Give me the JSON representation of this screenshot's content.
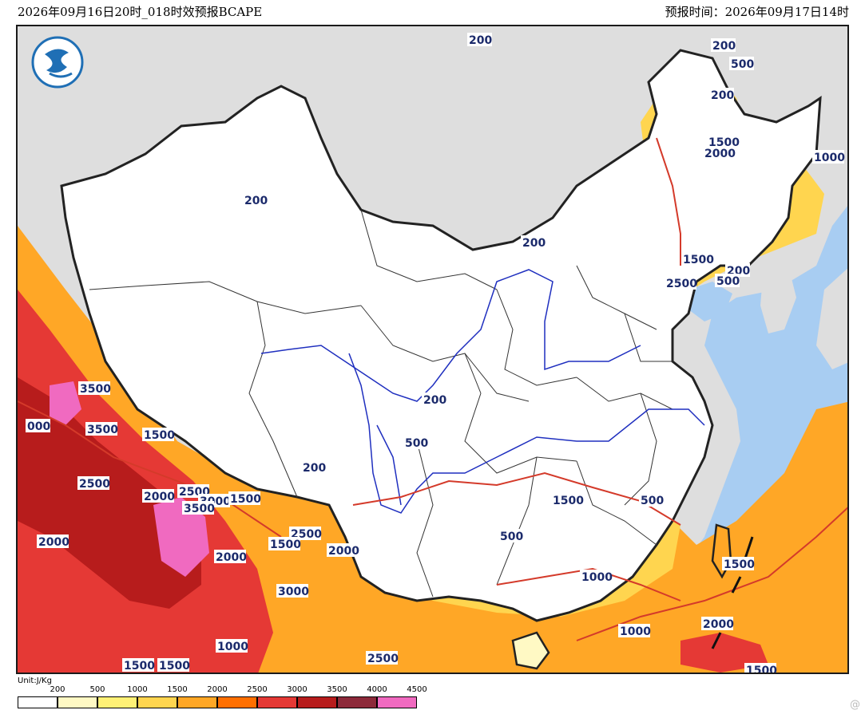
{
  "header": {
    "left": "2026年09月16日20时_018时效预报BCAPE",
    "right": "预报时间：2026年09月17日14时"
  },
  "legend": {
    "unit": "Unit:J/Kg",
    "ticks": [
      "200",
      "500",
      "1000",
      "1500",
      "2000",
      "2500",
      "3000",
      "3500",
      "4000",
      "4500"
    ],
    "colors": [
      "#ffffff",
      "#fff9c4",
      "#fff176",
      "#ffd54f",
      "#ffa726",
      "#ff6f00",
      "#e53935",
      "#b71c1c",
      "#8d2a3a",
      "#f06ac0"
    ]
  },
  "contour_labels": [
    {
      "id": "l01",
      "text": "200"
    },
    {
      "id": "l02",
      "text": "200"
    },
    {
      "id": "l03",
      "text": "500"
    },
    {
      "id": "l04",
      "text": "200"
    },
    {
      "id": "l05",
      "text": "1500"
    },
    {
      "id": "l06",
      "text": "2000"
    },
    {
      "id": "l07",
      "text": "1000"
    },
    {
      "id": "l08",
      "text": "200"
    },
    {
      "id": "l09",
      "text": "200"
    },
    {
      "id": "l10",
      "text": "1500"
    },
    {
      "id": "l11",
      "text": "200"
    },
    {
      "id": "l12",
      "text": "2500"
    },
    {
      "id": "l13",
      "text": "500"
    },
    {
      "id": "l14",
      "text": "200"
    },
    {
      "id": "l15",
      "text": "500"
    },
    {
      "id": "l16",
      "text": "200"
    },
    {
      "id": "l17",
      "text": "3500"
    },
    {
      "id": "l18",
      "text": "3500"
    },
    {
      "id": "l19",
      "text": "1500"
    },
    {
      "id": "l20",
      "text": "000"
    },
    {
      "id": "l21",
      "text": "2500"
    },
    {
      "id": "l22",
      "text": "2000"
    },
    {
      "id": "l23",
      "text": "2500"
    },
    {
      "id": "l24",
      "text": "3000"
    },
    {
      "id": "l25",
      "text": "1500"
    },
    {
      "id": "l26",
      "text": "3500"
    },
    {
      "id": "l27",
      "text": "2000"
    },
    {
      "id": "l28",
      "text": "2500"
    },
    {
      "id": "l29",
      "text": "1500"
    },
    {
      "id": "l30",
      "text": "2000"
    },
    {
      "id": "l31",
      "text": "2000"
    },
    {
      "id": "l32",
      "text": "3000"
    },
    {
      "id": "l33",
      "text": "1000"
    },
    {
      "id": "l34",
      "text": "1500"
    },
    {
      "id": "l35",
      "text": "1500"
    },
    {
      "id": "l36",
      "text": "2500"
    },
    {
      "id": "l37",
      "text": "1500"
    },
    {
      "id": "l38",
      "text": "500"
    },
    {
      "id": "l39",
      "text": "500"
    },
    {
      "id": "l40",
      "text": "1000"
    },
    {
      "id": "l41",
      "text": "1000"
    },
    {
      "id": "l42",
      "text": "1500"
    },
    {
      "id": "l43",
      "text": "2000"
    },
    {
      "id": "l44",
      "text": "1500"
    }
  ],
  "colors": {
    "land_gray": "#dedede",
    "sea": "#a8cdf2",
    "china_fill": "#ffffff",
    "border": "#222222",
    "river": "#1f2fbf",
    "contour": "#d43a2a"
  },
  "logo_icon": "cma-logo-icon"
}
